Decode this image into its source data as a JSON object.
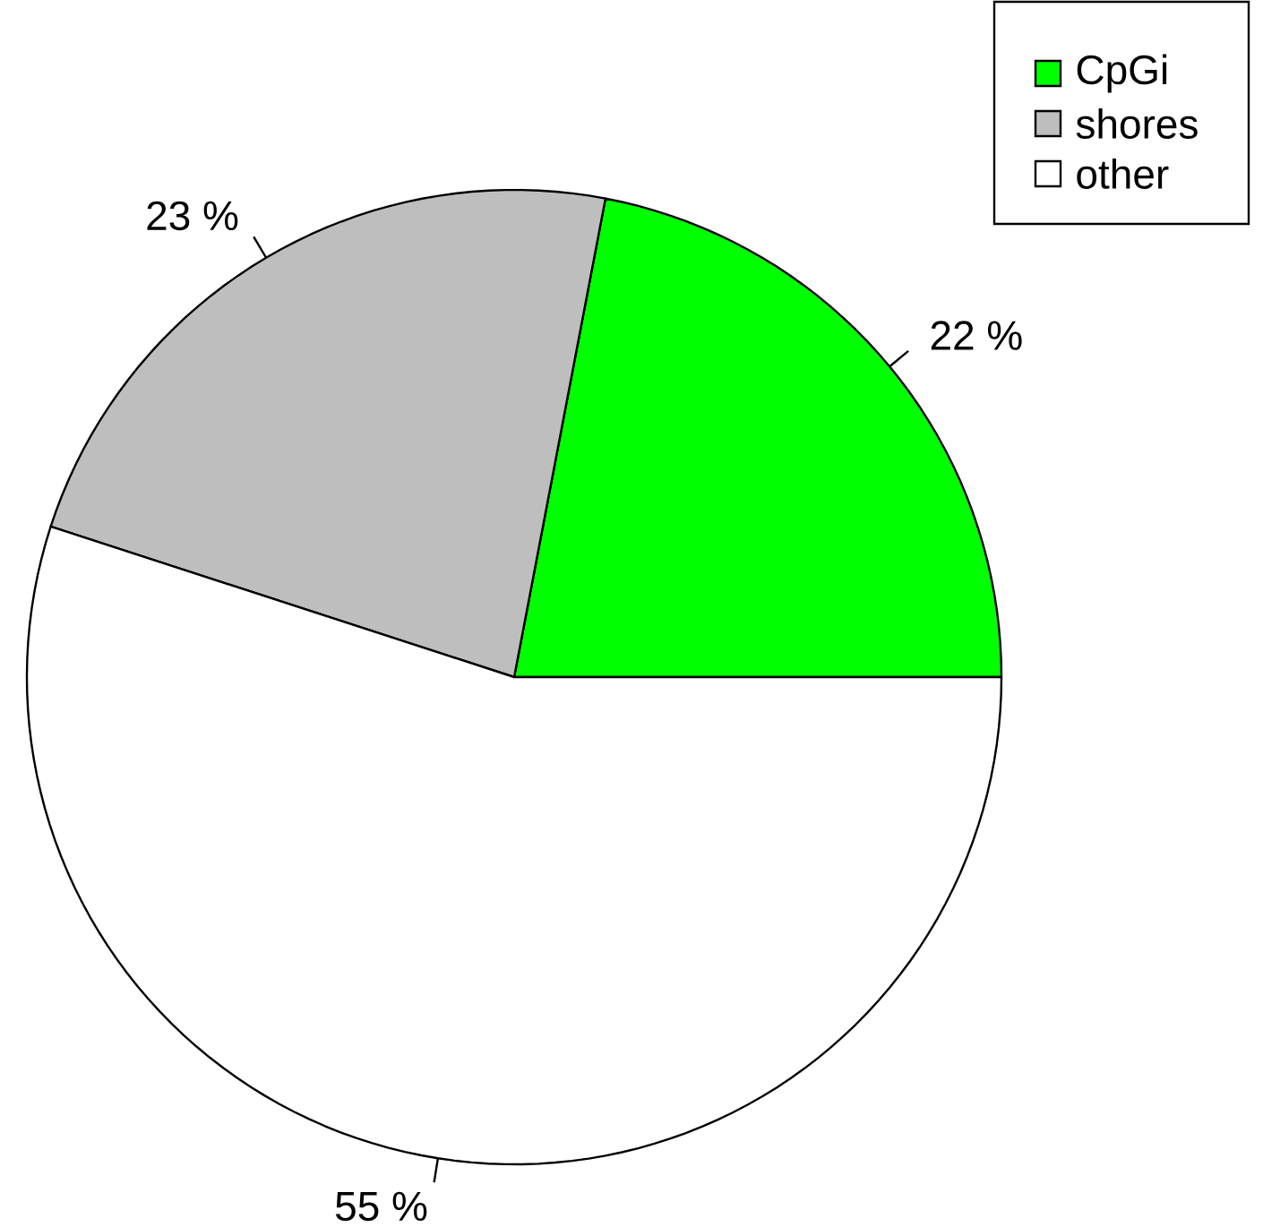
{
  "chart_data": {
    "type": "pie",
    "categories": [
      "CpGi",
      "shores",
      "other"
    ],
    "values": [
      22,
      23,
      55
    ],
    "colors": [
      "#00ff00",
      "#bebebe",
      "#ffffff"
    ],
    "value_labels": [
      "22 %",
      "23 %",
      "55 %"
    ],
    "legend": "top right"
  }
}
